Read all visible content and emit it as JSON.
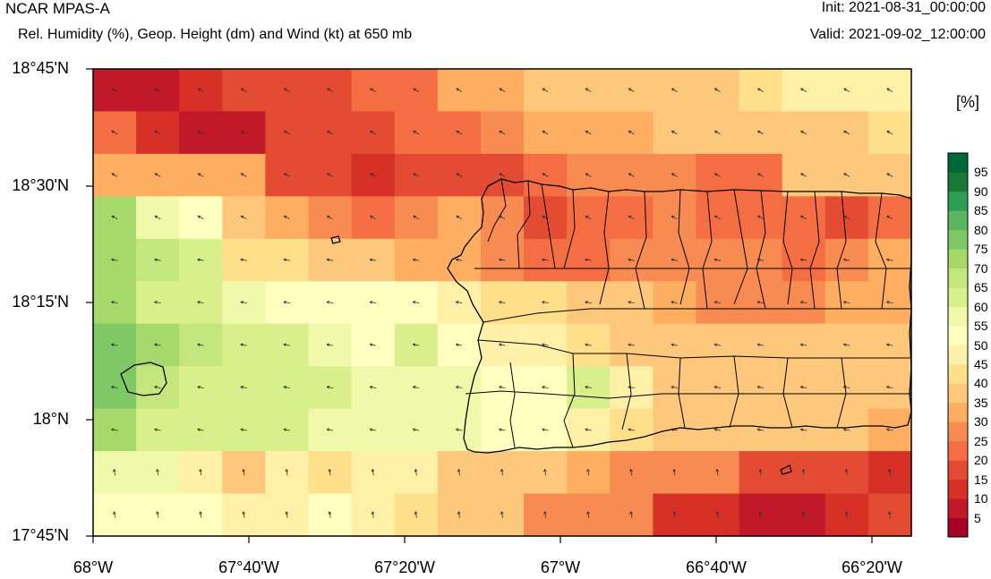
{
  "header": {
    "title": "NCAR MPAS-A",
    "subtitle": "Rel. Humidity (%), Geop. Height (dm) and Wind (kt) at 650 mb",
    "init": "Init: 2021-08-31_00:00:00",
    "valid": "Valid: 2021-09-02_12:00:00"
  },
  "axes": {
    "y_labels": [
      "18°45'N",
      "18°30'N",
      "18°15'N",
      "18°N",
      "17°45'N"
    ],
    "x_labels": [
      "68°W",
      "67°40'W",
      "67°20'W",
      "67°W",
      "66°40'W",
      "66°20'W"
    ]
  },
  "colorbar": {
    "unit": "[%]",
    "levels": [
      "5",
      "10",
      "15",
      "20",
      "25",
      "30",
      "35",
      "40",
      "45",
      "50",
      "55",
      "60",
      "65",
      "70",
      "75",
      "80",
      "85",
      "90",
      "95"
    ],
    "colors": [
      "#a50026",
      "#c1182a",
      "#d73027",
      "#e34b32",
      "#f46d43",
      "#f78b52",
      "#fdae61",
      "#fdc77c",
      "#fee08b",
      "#fff0a8",
      "#ffffbf",
      "#f0f9aa",
      "#d9ef8b",
      "#c3e67d",
      "#a6d96a",
      "#7fc866",
      "#5ab560",
      "#2d9e52",
      "#1a7837",
      "#006837"
    ],
    "palette": [
      "#a50026",
      "#c1182a",
      "#d73027",
      "#e34b32",
      "#f46d43",
      "#f78b52",
      "#fdae61",
      "#fdc77c",
      "#fee08b",
      "#fff0a8",
      "#ffffbf",
      "#f0f9aa",
      "#d9ef8b",
      "#c3e67d",
      "#a6d96a",
      "#7fc866",
      "#5ab560",
      "#2d9e52",
      "#1a7837",
      "#006837"
    ]
  },
  "map": {
    "lon_range": [
      -68.0,
      -66.226
    ],
    "lat_range": [
      17.75,
      18.75
    ],
    "region": "Puerto Rico",
    "grid_rh_band_index": [
      [
        1,
        1,
        2,
        3,
        3,
        3,
        4,
        4,
        6,
        6,
        7,
        7,
        7,
        7,
        7,
        8,
        9,
        9,
        9
      ],
      [
        4,
        2,
        1,
        1,
        3,
        3,
        3,
        4,
        4,
        5,
        6,
        6,
        6,
        7,
        7,
        7,
        7,
        7,
        8
      ],
      [
        6,
        6,
        6,
        6,
        3,
        3,
        2,
        3,
        3,
        3,
        4,
        5,
        5,
        5,
        4,
        4,
        7,
        7,
        7
      ],
      [
        14,
        11,
        10,
        7,
        6,
        5,
        4,
        5,
        6,
        5,
        3,
        4,
        4,
        5,
        4,
        4,
        4,
        3,
        4
      ],
      [
        14,
        13,
        12,
        8,
        8,
        7,
        7,
        6,
        6,
        5,
        4,
        4,
        5,
        5,
        5,
        5,
        4,
        5,
        6
      ],
      [
        14,
        12,
        12,
        11,
        10,
        10,
        10,
        10,
        9,
        8,
        8,
        7,
        7,
        6,
        5,
        5,
        5,
        6,
        6
      ],
      [
        15,
        14,
        13,
        12,
        12,
        11,
        10,
        12,
        10,
        9,
        9,
        8,
        7,
        7,
        7,
        7,
        7,
        7,
        7
      ],
      [
        15,
        13,
        12,
        12,
        12,
        12,
        11,
        11,
        11,
        10,
        10,
        12,
        9,
        7,
        7,
        7,
        7,
        7,
        7
      ],
      [
        14,
        12,
        12,
        12,
        12,
        11,
        11,
        11,
        11,
        10,
        10,
        9,
        8,
        7,
        7,
        7,
        7,
        7,
        6
      ],
      [
        11,
        11,
        9,
        7,
        9,
        8,
        9,
        9,
        7,
        7,
        7,
        6,
        5,
        5,
        5,
        3,
        3,
        3,
        2
      ],
      [
        10,
        10,
        10,
        9,
        9,
        10,
        9,
        8,
        7,
        7,
        5,
        5,
        5,
        2,
        2,
        1,
        1,
        2,
        3
      ]
    ]
  }
}
